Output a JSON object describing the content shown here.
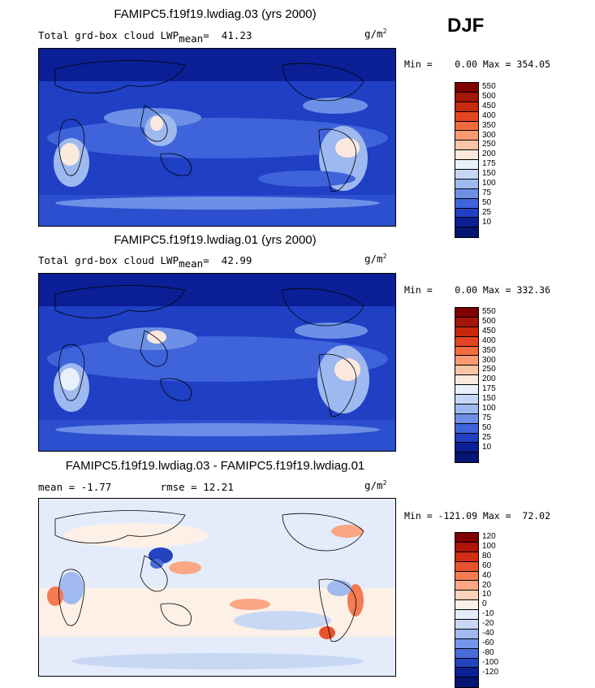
{
  "season": "DJF",
  "units_base": "g/m",
  "units_exp": "2",
  "panels": [
    {
      "title": "FAMIPC5.f19f19.lwdiag.03 (yrs 2000)",
      "subtitle_left": "Total grd-box cloud LWP",
      "subtitle_sub": "mean",
      "subtitle_eq": "=",
      "mean_value": "41.23",
      "minmax": "Min =    0.00 Max = 354.05",
      "colorbar_labels": [
        "550",
        "500",
        "450",
        "400",
        "350",
        "300",
        "250",
        "200",
        "175",
        "150",
        "100",
        "75",
        "50",
        "25",
        "10"
      ]
    },
    {
      "title": "FAMIPC5.f19f19.lwdiag.01 (yrs 2000)",
      "subtitle_left": "Total grd-box cloud LWP",
      "subtitle_sub": "mean",
      "subtitle_eq": "=",
      "mean_value": "42.99",
      "minmax": "Min =    0.00 Max = 332.36",
      "colorbar_labels": [
        "550",
        "500",
        "450",
        "400",
        "350",
        "300",
        "250",
        "200",
        "175",
        "150",
        "100",
        "75",
        "50",
        "25",
        "10"
      ]
    },
    {
      "title": "FAMIPC5.f19f19.lwdiag.03 - FAMIPC5.f19f19.lwdiag.01",
      "mean_label": "mean =",
      "mean_value": "-1.77",
      "rmse_label": "rmse =",
      "rmse_value": "12.21",
      "minmax": "Min = -121.09 Max =  72.02",
      "colorbar_labels": [
        "120",
        "100",
        "80",
        "60",
        "40",
        "20",
        "10",
        "0",
        "-10",
        "-20",
        "-40",
        "-60",
        "-80",
        "-100",
        "-120"
      ]
    }
  ],
  "colors": {
    "abs_scale": [
      "#7f0000",
      "#a3160a",
      "#c8280e",
      "#e2451f",
      "#f26b3d",
      "#f89a72",
      "#fbc4a6",
      "#fbe9de",
      "#e8f0fb",
      "#c6d6f4",
      "#9db9ef",
      "#6d90e6",
      "#3e63da",
      "#1f3fc4",
      "#0a1f95",
      "#041572"
    ],
    "diff_scale": [
      "#7f0000",
      "#b01407",
      "#d22e12",
      "#e9532c",
      "#f47b52",
      "#f9a883",
      "#fbd2bb",
      "#fdf0e6",
      "#e4ecfb",
      "#c7d7f4",
      "#a0baef",
      "#7396e6",
      "#4a6bd8",
      "#2443bf",
      "#0b2096",
      "#041572"
    ]
  }
}
